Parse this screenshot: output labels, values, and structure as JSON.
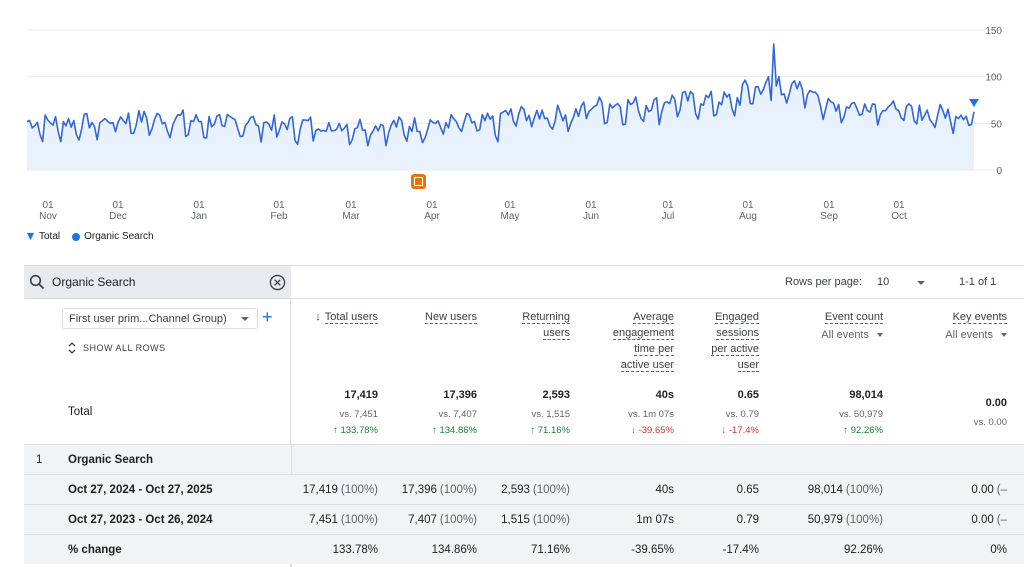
{
  "chart_data": {
    "type": "line",
    "series": [
      {
        "name": "Organic Search"
      }
    ],
    "x_ticks": [
      {
        "day": "01",
        "month": "Nov"
      },
      {
        "day": "01",
        "month": "Dec"
      },
      {
        "day": "01",
        "month": "Jan"
      },
      {
        "day": "01",
        "month": "Feb"
      },
      {
        "day": "01",
        "month": "Mar"
      },
      {
        "day": "01",
        "month": "Apr"
      },
      {
        "day": "01",
        "month": "May"
      },
      {
        "day": "01",
        "month": "Jun"
      },
      {
        "day": "01",
        "month": "Jul"
      },
      {
        "day": "01",
        "month": "Aug"
      },
      {
        "day": "01",
        "month": "Sep"
      },
      {
        "day": "01",
        "month": "Oct"
      }
    ],
    "y_ticks": [
      "150",
      "100",
      "50",
      "0"
    ],
    "ylim": [
      0,
      150
    ],
    "grid": true,
    "monthly_avg": [
      48,
      52,
      49,
      46,
      45,
      48,
      57,
      67,
      72,
      84,
      67,
      58
    ],
    "peak": 135,
    "colors": {
      "line": "#3367d6",
      "fill": "#e8f1fc"
    }
  },
  "legend": {
    "total": "Total",
    "organic": "Organic Search"
  },
  "search": {
    "value": "Organic Search"
  },
  "dimension": {
    "label": "First user prim...Channel Group)"
  },
  "show_all_rows": "SHOW ALL ROWS",
  "toolbar": {
    "rows_per_page_label": "Rows per page:",
    "rows_per_page_value": "10",
    "pager": "1-1 of 1"
  },
  "columns": [
    {
      "label": "Total users",
      "sorted": true
    },
    {
      "label": "New users"
    },
    {
      "label": "Returning users"
    },
    {
      "label": "Average engagement time per active user"
    },
    {
      "label": "Engaged sessions per active user"
    },
    {
      "label": "Event count",
      "sub": "All events"
    },
    {
      "label": "Key events",
      "sub": "All events"
    }
  ],
  "totals": {
    "label": "Total",
    "values": [
      "17,419",
      "17,396",
      "2,593",
      "40s",
      "0.65",
      "98,014",
      "0.00"
    ],
    "vs": [
      "vs. 7,451",
      "vs. 7,407",
      "vs. 1,515",
      "vs. 1m 07s",
      "vs. 0.79",
      "vs. 50,979",
      "vs. 0.00"
    ],
    "pct": [
      "↑ 133.78%",
      "↑ 134.86%",
      "↑ 71.16%",
      "↓ -39.65%",
      "↓ -17.4%",
      "↑ 92.26%",
      ""
    ]
  },
  "rows": [
    {
      "idx": "1",
      "name": "Organic Search",
      "cells": []
    },
    {
      "name": "Oct 27, 2024 - Oct 27, 2025",
      "cells": [
        {
          "v": "17,419",
          "p": "(100%)"
        },
        {
          "v": "17,396",
          "p": "(100%)"
        },
        {
          "v": "2,593",
          "p": "(100%)"
        },
        {
          "v": "40s",
          "p": ""
        },
        {
          "v": "0.65",
          "p": ""
        },
        {
          "v": "98,014",
          "p": "(100%)"
        },
        {
          "v": "0.00",
          "p": "(–"
        }
      ]
    },
    {
      "name": "Oct 27, 2023 - Oct 26, 2024",
      "cells": [
        {
          "v": "7,451",
          "p": "(100%)"
        },
        {
          "v": "7,407",
          "p": "(100%)"
        },
        {
          "v": "1,515",
          "p": "(100%)"
        },
        {
          "v": "1m 07s",
          "p": ""
        },
        {
          "v": "0.79",
          "p": ""
        },
        {
          "v": "50,979",
          "p": "(100%)"
        },
        {
          "v": "0.00",
          "p": "(–"
        }
      ]
    },
    {
      "name": "% change",
      "cells": [
        {
          "v": "133.78%",
          "p": ""
        },
        {
          "v": "134.86%",
          "p": ""
        },
        {
          "v": "71.16%",
          "p": ""
        },
        {
          "v": "-39.65%",
          "p": ""
        },
        {
          "v": "-17.4%",
          "p": ""
        },
        {
          "v": "92.26%",
          "p": ""
        },
        {
          "v": "0%",
          "p": ""
        }
      ]
    }
  ]
}
